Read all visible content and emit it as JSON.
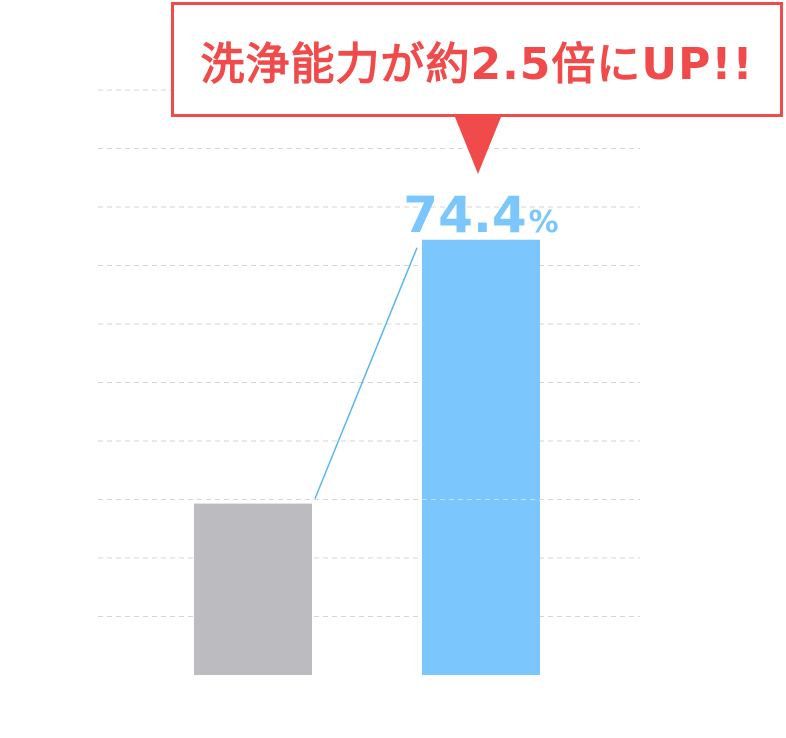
{
  "callout": {
    "text": "洗浄能力が約2.5倍にUP!!"
  },
  "colors": {
    "callout": "#f04a4a",
    "before_bar": "#bcbbbf",
    "after_bar": "#7ac6fd",
    "grid": "#d6d6d6",
    "connector": "#5bb6ee"
  },
  "chart_data": {
    "type": "bar",
    "categories": [
      "",
      ""
    ],
    "values": [
      29.3,
      74.4
    ],
    "labels": [
      "",
      "74.4%"
    ],
    "ylim": [
      0,
      100
    ],
    "grid": true
  }
}
